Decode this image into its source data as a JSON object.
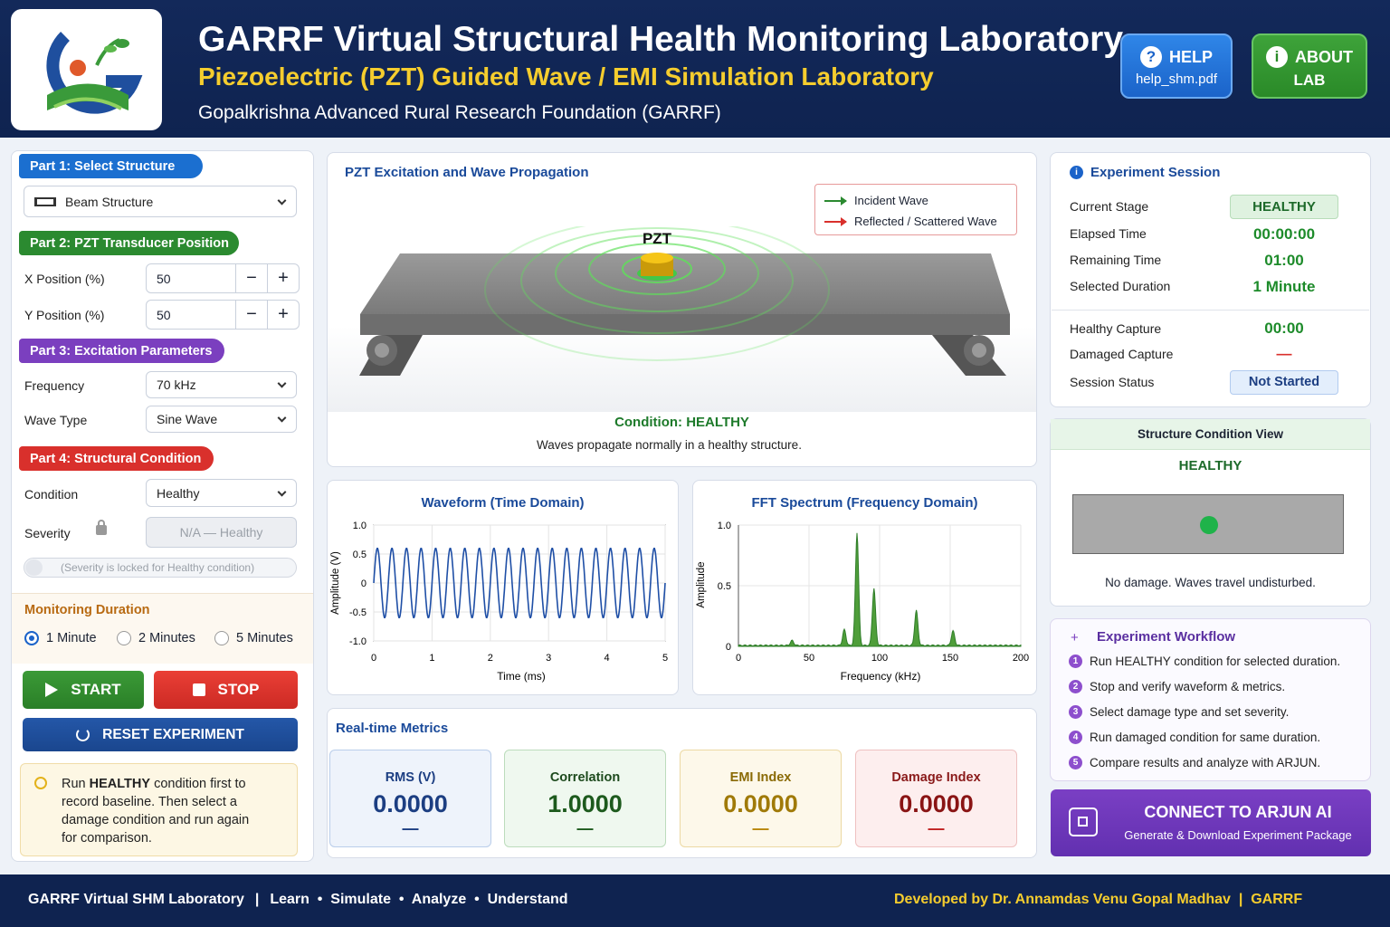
{
  "header": {
    "title": "GARRF Virtual Structural Health Monitoring Laboratory",
    "subtitle": "Piezoelectric (PZT) Guided Wave / EMI Simulation Laboratory",
    "organization": "Gopalkrishna Advanced Rural Research Foundation (GARRF)",
    "help_label": "HELP",
    "help_file": "help_shm.pdf",
    "about_label_1": "ABOUT",
    "about_label_2": "LAB"
  },
  "left": {
    "part1": "Part 1: Select Structure",
    "structure": "Beam Structure",
    "part2": "Part 2: PZT Transducer Position",
    "x_label": "X Position (%)",
    "x_value": "50",
    "y_label": "Y Position (%)",
    "y_value": "50",
    "part3": "Part 3: Excitation Parameters",
    "freq_label": "Frequency",
    "freq_value": "70 kHz",
    "wave_label": "Wave Type",
    "wave_value": "Sine Wave",
    "part4": "Part 4: Structural Condition",
    "cond_label": "Condition",
    "cond_value": "Healthy",
    "sev_label": "Severity",
    "sev_value": "N/A — Healthy",
    "sev_note": "(Severity is locked for Healthy condition)",
    "duration_title": "Monitoring Duration",
    "durations": [
      "1 Minute",
      "2 Minutes",
      "5 Minutes"
    ],
    "start": "START",
    "stop": "STOP",
    "reset": "RESET EXPERIMENT",
    "tip_1": "Run ",
    "tip_bold": "HEALTHY",
    "tip_2": " condition first to",
    "tip_3": "record baseline. Then select a",
    "tip_4": "damage condition and run again",
    "tip_5": "for comparison."
  },
  "viz": {
    "title": "PZT Excitation and Wave Propagation",
    "legend_incident": "Incident Wave",
    "legend_reflected": "Reflected / Scattered Wave",
    "pzt_label": "PZT",
    "condition": "Condition: HEALTHY",
    "desc": "Waves propagate normally in a healthy structure."
  },
  "waveform": {
    "title": "Waveform (Time Domain)",
    "xlabel": "Time (ms)",
    "ylabel": "Amplitude (V)",
    "xticks": [
      "0",
      "1",
      "2",
      "3",
      "4",
      "5"
    ],
    "yticks": [
      "1.0",
      "0.5",
      "0",
      "-0.5",
      "-1.0"
    ]
  },
  "fft": {
    "title": "FFT Spectrum (Frequency Domain)",
    "xlabel": "Frequency (kHz)",
    "ylabel": "Amplitude",
    "xticks": [
      "0",
      "50",
      "100",
      "150",
      "200"
    ],
    "yticks": [
      "1.0",
      "0.5",
      "0"
    ]
  },
  "chart_data": [
    {
      "type": "line",
      "title": "Waveform (Time Domain)",
      "xlabel": "Time (ms)",
      "ylabel": "Amplitude (V)",
      "xlim": [
        0,
        5
      ],
      "ylim": [
        -1.0,
        1.0
      ],
      "series": [
        {
          "cycles": 20,
          "amplitude": 0.6,
          "x_range": [
            0,
            5
          ]
        }
      ]
    },
    {
      "type": "line",
      "title": "FFT Spectrum (Frequency Domain)",
      "xlabel": "Frequency (kHz)",
      "ylabel": "Amplitude",
      "xlim": [
        0,
        200
      ],
      "ylim": [
        0,
        1.0
      ],
      "peaks": [
        {
          "x": 38,
          "y": 0.04
        },
        {
          "x": 75,
          "y": 0.13
        },
        {
          "x": 84,
          "y": 0.93
        },
        {
          "x": 96,
          "y": 0.47
        },
        {
          "x": 126,
          "y": 0.29
        },
        {
          "x": 152,
          "y": 0.12
        }
      ]
    }
  ],
  "metrics": {
    "title": "Real-time Metrics",
    "rms_label": "RMS (V)",
    "rms_value": "0.0000",
    "rms_delta": "—",
    "corr_label": "Correlation",
    "corr_value": "1.0000",
    "corr_delta": "—",
    "emi_label": "EMI Index",
    "emi_value": "0.0000",
    "emi_delta": "—",
    "dmg_label": "Damage Index",
    "dmg_value": "0.0000",
    "dmg_delta": "—"
  },
  "session": {
    "title": "Experiment Session",
    "stage_label": "Current Stage",
    "stage_value": "HEALTHY",
    "elapsed_label": "Elapsed Time",
    "elapsed_value": "00:00:00",
    "remaining_label": "Remaining Time",
    "remaining_value": "01:00",
    "duration_label": "Selected Duration",
    "duration_value": "1 Minute",
    "hcap_label": "Healthy Capture",
    "hcap_value": "00:00",
    "dcap_label": "Damaged Capture",
    "dcap_value": "—",
    "status_label": "Session Status",
    "status_value": "Not Started"
  },
  "condition_view": {
    "title": "Structure Condition View",
    "state": "HEALTHY",
    "note": "No damage. Waves travel undisturbed."
  },
  "workflow": {
    "title": "Experiment Workflow",
    "steps": [
      "Run HEALTHY condition for selected duration.",
      "Stop and verify waveform & metrics.",
      "Select damage type and set severity.",
      "Run damaged condition for same duration.",
      "Compare results and analyze with ARJUN."
    ]
  },
  "arjun": {
    "title": "CONNECT TO ARJUN AI",
    "subtitle": "Generate & Download Experiment Package"
  },
  "footer": {
    "left_name": "GARRF Virtual SHM Laboratory",
    "left_tags": "Learn  •  Simulate  •  Analyze  •  Understand",
    "right": "Developed by Dr. Annamdas Venu Gopal Madhav  |  GARRF"
  },
  "colors": {
    "header_bg": "#0f2350",
    "accent_yellow": "#f5cd2e",
    "healthy_green": "#1d8b2a",
    "part1": "#1b6fd0",
    "part2": "#2b8a30",
    "part3": "#7b3fbf",
    "part4": "#d9302c"
  }
}
